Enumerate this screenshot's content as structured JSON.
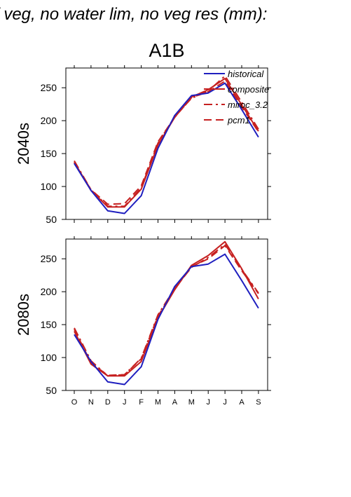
{
  "header": {
    "title": "f veg, no water lim, no veg res (mm):",
    "scenario": "A1B"
  },
  "colors": {
    "historical": "#1f1fbf",
    "composite": "#c62020",
    "miroc_3.2": "#c62020",
    "pcm1": "#c62020",
    "axis": "#000000"
  },
  "chart_data": [
    {
      "type": "line",
      "title": "",
      "ylabel": "2040s",
      "xlabel": "",
      "categories": [
        "O",
        "N",
        "D",
        "J",
        "F",
        "M",
        "A",
        "M",
        "J",
        "J",
        "A",
        "S"
      ],
      "ylim": [
        50,
        280
      ],
      "yticks": [
        50,
        100,
        150,
        200,
        250
      ],
      "grid": false,
      "legend": {
        "position": "top-right",
        "entries": [
          "historical",
          "composite",
          "miroc_3.2",
          "pcm1"
        ]
      },
      "series": [
        {
          "name": "historical",
          "style": "solid",
          "values": [
            135,
            94,
            63,
            59,
            86,
            158,
            208,
            238,
            242,
            257,
            217,
            175
          ]
        },
        {
          "name": "composite",
          "style": "solid",
          "values": [
            137,
            94,
            69,
            69,
            96,
            163,
            205,
            236,
            247,
            264,
            224,
            184
          ]
        },
        {
          "name": "miroc_3.2",
          "style": "dashdot",
          "values": [
            139,
            95,
            70,
            70,
            98,
            166,
            206,
            234,
            245,
            268,
            228,
            187
          ]
        },
        {
          "name": "pcm1",
          "style": "longdash",
          "values": [
            136,
            95,
            73,
            74,
            101,
            168,
            205,
            235,
            244,
            260,
            221,
            183
          ]
        }
      ]
    },
    {
      "type": "line",
      "title": "",
      "ylabel": "2080s",
      "xlabel": "",
      "categories": [
        "O",
        "N",
        "D",
        "J",
        "F",
        "M",
        "A",
        "M",
        "J",
        "J",
        "A",
        "S"
      ],
      "ylim": [
        50,
        280
      ],
      "yticks": [
        50,
        100,
        150,
        200,
        250
      ],
      "grid": false,
      "series": [
        {
          "name": "historical",
          "style": "solid",
          "values": [
            135,
            94,
            63,
            59,
            86,
            158,
            208,
            238,
            242,
            257,
            217,
            175
          ]
        },
        {
          "name": "composite",
          "style": "solid",
          "values": [
            140,
            90,
            72,
            72,
            94,
            160,
            203,
            240,
            255,
            276,
            235,
            189
          ]
        },
        {
          "name": "miroc_3.2",
          "style": "dashdot",
          "values": [
            145,
            95,
            72,
            74,
            99,
            165,
            205,
            237,
            252,
            272,
            234,
            198
          ]
        },
        {
          "name": "pcm1",
          "style": "longdash",
          "values": [
            143,
            92,
            73,
            74,
            98,
            163,
            204,
            238,
            250,
            270,
            232,
            197
          ]
        }
      ]
    }
  ]
}
